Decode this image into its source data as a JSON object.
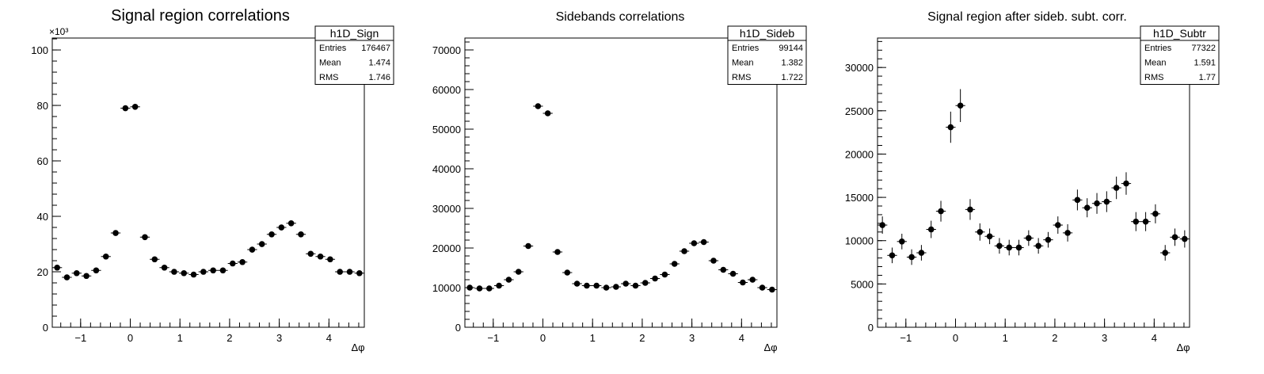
{
  "chart_data": [
    {
      "type": "histogram",
      "title": "Signal region correlations",
      "x_label": "Δφ",
      "y_multiplier": "×10³",
      "bins": [
        -1.5708,
        -1.3744,
        -1.1781,
        -0.9817,
        -0.7854,
        -0.589,
        -0.3927,
        -0.1963,
        0,
        0.1963,
        0.3927,
        0.589,
        0.7854,
        0.9817,
        1.1781,
        1.3744,
        1.5708,
        1.7671,
        1.9635,
        2.1598,
        2.3562,
        2.5525,
        2.7489,
        2.9452,
        3.1416,
        3.3379,
        3.5343,
        3.7306,
        3.927,
        4.1233,
        4.3197,
        4.516,
        4.7124
      ],
      "values": [
        21500,
        18000,
        19500,
        18500,
        20500,
        25500,
        34000,
        79000,
        79500,
        32500,
        24500,
        21500,
        20000,
        19500,
        19000,
        20000,
        20500,
        20500,
        23000,
        23500,
        28000,
        30000,
        33500,
        36000,
        37500,
        33500,
        26500,
        25500,
        24500,
        20000,
        20000,
        19500
      ],
      "color": "#000000",
      "xlim": [
        -1.5708,
        4.7124
      ],
      "xticks": [
        {
          "value": -1,
          "label": "−1"
        },
        0,
        1,
        2,
        3,
        4
      ],
      "ylim": [
        0,
        104300
      ],
      "yticks": [
        {
          "value": 0,
          "label": "0"
        },
        {
          "value": 20000,
          "label": "20"
        },
        {
          "value": 40000,
          "label": "40"
        },
        {
          "value": 60000,
          "label": "60"
        },
        {
          "value": 80000,
          "label": "80"
        },
        {
          "value": 100000,
          "label": "100"
        }
      ],
      "stats": {
        "name": "h1D_Sign",
        "rows": [
          {
            "label": "Entries",
            "value": 176467
          },
          {
            "label": "Mean",
            "value": 1.474
          },
          {
            "label": "RMS",
            "value": 1.746
          }
        ]
      }
    },
    {
      "type": "histogram",
      "title": "Sidebands correlations",
      "x_label": "Δφ",
      "bins": [
        -1.5708,
        -1.3744,
        -1.1781,
        -0.9817,
        -0.7854,
        -0.589,
        -0.3927,
        -0.1963,
        0,
        0.1963,
        0.3927,
        0.589,
        0.7854,
        0.9817,
        1.1781,
        1.3744,
        1.5708,
        1.7671,
        1.9635,
        2.1598,
        2.3562,
        2.5525,
        2.7489,
        2.9452,
        3.1416,
        3.3379,
        3.5343,
        3.7306,
        3.927,
        4.1233,
        4.3197,
        4.516,
        4.7124
      ],
      "values": [
        10000,
        9800,
        9800,
        10500,
        12000,
        14000,
        20500,
        55800,
        54000,
        19000,
        13800,
        11000,
        10500,
        10500,
        10000,
        10200,
        11000,
        10500,
        11200,
        12300,
        13300,
        16000,
        19200,
        21200,
        21500,
        16800,
        14500,
        13500,
        11300,
        12000,
        10000,
        9500
      ],
      "color": "#000000",
      "xlim": [
        -1.5708,
        4.7124
      ],
      "xticks": [
        {
          "value": -1,
          "label": "−1"
        },
        0,
        1,
        2,
        3,
        4
      ],
      "ylim": [
        0,
        73000
      ],
      "yticks": [
        0,
        10000,
        20000,
        30000,
        40000,
        50000,
        60000,
        70000
      ],
      "stats": {
        "name": "h1D_Sideb",
        "rows": [
          {
            "label": "Entries",
            "value": 99144
          },
          {
            "label": "Mean",
            "value": 1.382
          },
          {
            "label": "RMS",
            "value": 1.722
          }
        ]
      }
    },
    {
      "type": "histogram",
      "title": "Signal region after sideb. subt. corr.",
      "x_label": "Δφ",
      "bins": [
        -1.5708,
        -1.3744,
        -1.1781,
        -0.9817,
        -0.7854,
        -0.589,
        -0.3927,
        -0.1963,
        0,
        0.1963,
        0.3927,
        0.589,
        0.7854,
        0.9817,
        1.1781,
        1.3744,
        1.5708,
        1.7671,
        1.9635,
        2.1598,
        2.3562,
        2.5525,
        2.7489,
        2.9452,
        3.1416,
        3.3379,
        3.5343,
        3.7306,
        3.927,
        4.1233,
        4.3197,
        4.516,
        4.7124
      ],
      "values": [
        11800,
        8300,
        9900,
        8100,
        8600,
        11300,
        13400,
        23100,
        25600,
        13600,
        11000,
        10500,
        9400,
        9200,
        9200,
        10300,
        9400,
        10100,
        11800,
        10900,
        14700,
        13800,
        14300,
        14500,
        16100,
        16600,
        12200,
        12200,
        13100,
        8600,
        10400,
        10200
      ],
      "errors": [
        1000,
        900,
        900,
        900,
        900,
        1000,
        1200,
        1800,
        1900,
        1200,
        1000,
        900,
        900,
        900,
        900,
        900,
        900,
        900,
        1000,
        1000,
        1200,
        1100,
        1200,
        1200,
        1300,
        1300,
        1100,
        1100,
        1100,
        900,
        1000,
        1000
      ],
      "color": "#000000",
      "xlim": [
        -1.5708,
        4.7124
      ],
      "xticks": [
        {
          "value": -1,
          "label": "−1"
        },
        0,
        1,
        2,
        3,
        4
      ],
      "ylim": [
        0,
        33400
      ],
      "yticks": [
        0,
        5000,
        10000,
        15000,
        20000,
        25000,
        30000
      ],
      "stats": {
        "name": "h1D_Subtr",
        "rows": [
          {
            "label": "Entries",
            "value": 77322
          },
          {
            "label": "Mean",
            "value": 1.591
          },
          {
            "label": "RMS",
            "value": 1.77
          }
        ]
      }
    }
  ]
}
